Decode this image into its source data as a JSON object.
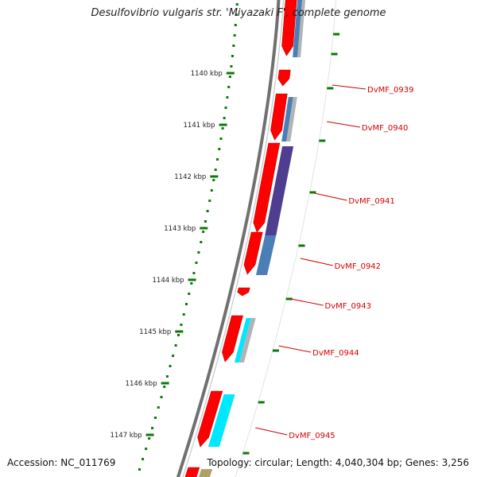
{
  "title": "Desulfovibrio vulgaris str. 'Miyazaki F', complete genome",
  "footer": {
    "accession": "Accession: NC_011769",
    "topology": "Topology: circular; Length: 4,040,304 bp; Genes: 3,256"
  },
  "colors": {
    "backbone": "#707070",
    "ruler": "#0a7a0a",
    "forward_gene": "#ff0000",
    "label": "#d40000",
    "cog_blue": "#4a7fb5",
    "cog_purple": "#4f3d8f",
    "cog_cyan": "#00e8ff",
    "cog_grey": "#b3b3b3",
    "cog_olive": "#b0a06a"
  },
  "ruler_ticks": [
    "1140 kbp",
    "1141 kbp",
    "1142 kbp",
    "1143 kbp",
    "1144 kbp",
    "1145 kbp",
    "1146 kbp",
    "1147 kbp"
  ],
  "gene_labels": [
    "DvMF_0939",
    "DvMF_0940",
    "DvMF_0941",
    "DvMF_0942",
    "DvMF_0943",
    "DvMF_0944",
    "DvMF_0945"
  ]
}
